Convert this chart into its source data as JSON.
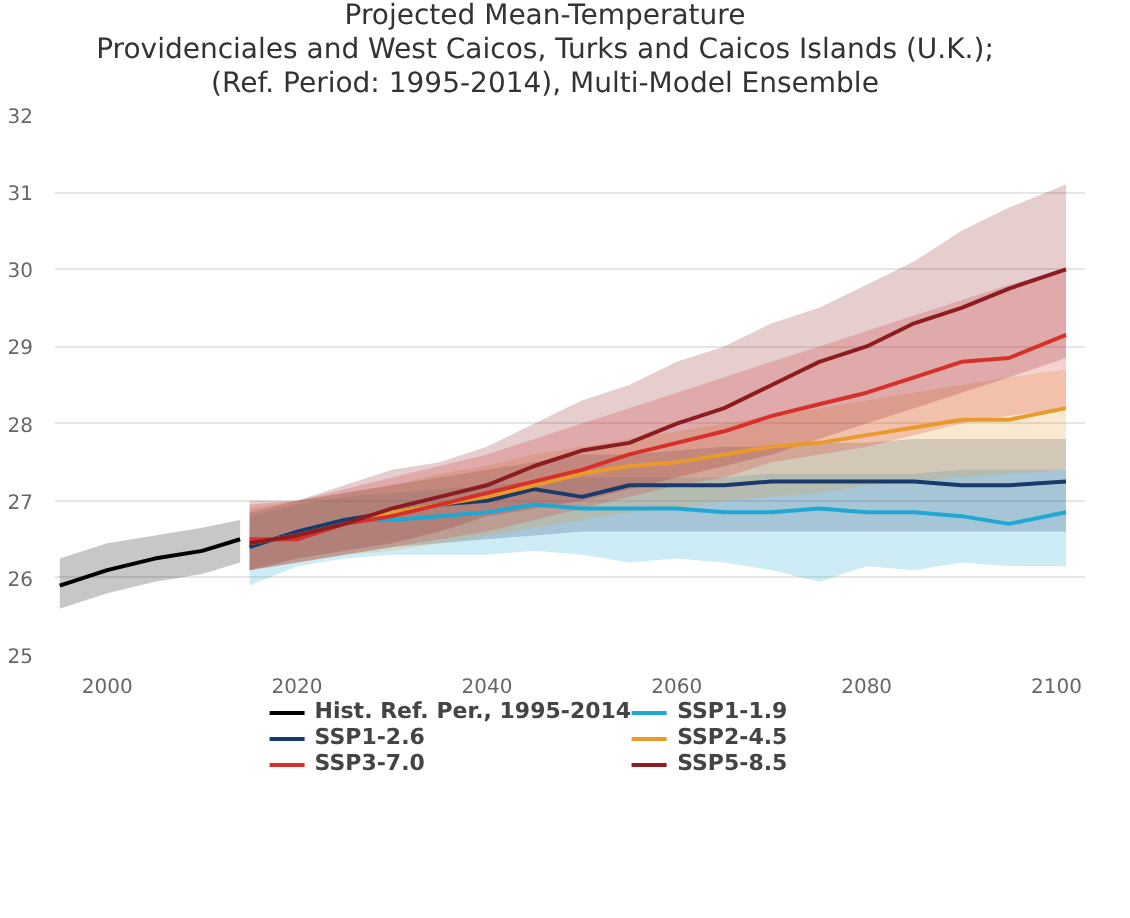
{
  "chart_data": {
    "type": "line",
    "title": "Projected Mean-Temperature\nProvidenciales and West Caicos, Turks and Caicos Islands (U.K.);\n(Ref. Period: 1995-2014), Multi-Model Ensemble",
    "xlim": [
      1994.5,
      2103
    ],
    "ylim": [
      25,
      32
    ],
    "xticks": [
      2000,
      2020,
      2040,
      2060,
      2080,
      2100
    ],
    "yticks": [
      25,
      26,
      27,
      28,
      29,
      30,
      31,
      32
    ],
    "grid": "y",
    "legend": "bottom",
    "series": [
      {
        "name": "Hist. Ref. Per., 1995-2014",
        "color": "#000000",
        "x": [
          1995,
          2000,
          2005,
          2010,
          2014
        ],
        "values": [
          25.9,
          26.1,
          26.25,
          26.35,
          26.5
        ],
        "lower": [
          25.6,
          25.8,
          25.95,
          26.05,
          26.2
        ],
        "upper": [
          26.25,
          26.45,
          26.55,
          26.65,
          26.75
        ]
      },
      {
        "name": "SSP1-1.9",
        "color": "#1fa8d4",
        "x": [
          2015,
          2020,
          2025,
          2030,
          2035,
          2040,
          2045,
          2050,
          2055,
          2060,
          2065,
          2070,
          2075,
          2080,
          2085,
          2090,
          2095,
          2101
        ],
        "values": [
          26.4,
          26.6,
          26.75,
          26.75,
          26.8,
          26.85,
          26.95,
          26.9,
          26.9,
          26.9,
          26.85,
          26.85,
          26.9,
          26.85,
          26.85,
          26.8,
          26.7,
          26.85
        ],
        "lower": [
          25.9,
          26.15,
          26.25,
          26.3,
          26.3,
          26.3,
          26.35,
          26.3,
          26.2,
          26.25,
          26.2,
          26.1,
          25.95,
          26.15,
          26.1,
          26.2,
          26.15,
          26.15
        ],
        "upper": [
          26.8,
          26.95,
          27.05,
          27.1,
          27.15,
          27.2,
          27.25,
          27.3,
          27.3,
          27.3,
          27.3,
          27.35,
          27.35,
          27.35,
          27.35,
          27.4,
          27.4,
          27.4
        ]
      },
      {
        "name": "SSP1-2.6",
        "color": "#1a3a6b",
        "x": [
          2015,
          2020,
          2025,
          2030,
          2035,
          2040,
          2045,
          2050,
          2055,
          2060,
          2065,
          2070,
          2075,
          2080,
          2085,
          2090,
          2095,
          2101
        ],
        "values": [
          26.4,
          26.6,
          26.75,
          26.85,
          26.95,
          27.0,
          27.15,
          27.05,
          27.2,
          27.2,
          27.2,
          27.25,
          27.25,
          27.25,
          27.25,
          27.2,
          27.2,
          27.25
        ],
        "lower": [
          26.1,
          26.2,
          26.3,
          26.4,
          26.45,
          26.5,
          26.55,
          26.6,
          26.6,
          26.6,
          26.6,
          26.6,
          26.6,
          26.6,
          26.6,
          26.6,
          26.6,
          26.6
        ],
        "upper": [
          26.85,
          27.0,
          27.1,
          27.2,
          27.3,
          27.4,
          27.5,
          27.6,
          27.6,
          27.65,
          27.7,
          27.7,
          27.75,
          27.75,
          27.8,
          27.8,
          27.8,
          27.8
        ]
      },
      {
        "name": "SSP2-4.5",
        "color": "#e89a2c",
        "x": [
          2015,
          2020,
          2025,
          2030,
          2035,
          2040,
          2045,
          2050,
          2055,
          2060,
          2065,
          2070,
          2075,
          2080,
          2085,
          2090,
          2095,
          2101
        ],
        "values": [
          26.45,
          26.55,
          26.7,
          26.85,
          26.95,
          27.05,
          27.2,
          27.35,
          27.45,
          27.5,
          27.6,
          27.7,
          27.75,
          27.85,
          27.95,
          28.05,
          28.05,
          28.2
        ],
        "lower": [
          26.1,
          26.2,
          26.3,
          26.35,
          26.45,
          26.55,
          26.65,
          26.75,
          26.85,
          26.9,
          27.0,
          27.05,
          27.1,
          27.2,
          27.25,
          27.3,
          27.35,
          27.4
        ],
        "upper": [
          26.9,
          27.0,
          27.1,
          27.2,
          27.35,
          27.45,
          27.6,
          27.7,
          27.8,
          27.9,
          28.0,
          28.1,
          28.2,
          28.3,
          28.4,
          28.5,
          28.6,
          28.7
        ]
      },
      {
        "name": "SSP3-7.0",
        "color": "#d7302a",
        "x": [
          2015,
          2020,
          2025,
          2030,
          2035,
          2040,
          2045,
          2050,
          2055,
          2060,
          2065,
          2070,
          2075,
          2080,
          2085,
          2090,
          2095,
          2101
        ],
        "values": [
          26.5,
          26.5,
          26.7,
          26.8,
          26.95,
          27.1,
          27.25,
          27.4,
          27.6,
          27.75,
          27.9,
          28.1,
          28.25,
          28.4,
          28.6,
          28.8,
          28.85,
          29.15
        ],
        "lower": [
          26.1,
          26.2,
          26.3,
          26.4,
          26.5,
          26.6,
          26.75,
          26.9,
          27.05,
          27.2,
          27.3,
          27.5,
          27.6,
          27.7,
          27.85,
          28.0,
          28.1,
          28.2
        ],
        "upper": [
          26.95,
          27.0,
          27.15,
          27.3,
          27.45,
          27.6,
          27.8,
          28.0,
          28.2,
          28.4,
          28.6,
          28.8,
          29.0,
          29.2,
          29.4,
          29.6,
          29.8,
          30.0
        ]
      },
      {
        "name": "SSP5-8.5",
        "color": "#8c1c22",
        "x": [
          2015,
          2020,
          2025,
          2030,
          2035,
          2040,
          2045,
          2050,
          2055,
          2060,
          2065,
          2070,
          2075,
          2080,
          2085,
          2090,
          2095,
          2101
        ],
        "values": [
          26.45,
          26.55,
          26.7,
          26.9,
          27.05,
          27.2,
          27.45,
          27.65,
          27.75,
          28.0,
          28.2,
          28.5,
          28.8,
          29.0,
          29.3,
          29.5,
          29.75,
          30.0
        ],
        "lower": [
          26.1,
          26.25,
          26.35,
          26.45,
          26.6,
          26.8,
          26.9,
          27.0,
          27.15,
          27.3,
          27.45,
          27.6,
          27.8,
          28.0,
          28.2,
          28.4,
          28.6,
          28.85
        ],
        "upper": [
          27.0,
          27.0,
          27.2,
          27.4,
          27.5,
          27.7,
          28.0,
          28.3,
          28.5,
          28.8,
          29.0,
          29.3,
          29.5,
          29.8,
          30.1,
          30.5,
          30.8,
          31.1
        ]
      }
    ]
  }
}
